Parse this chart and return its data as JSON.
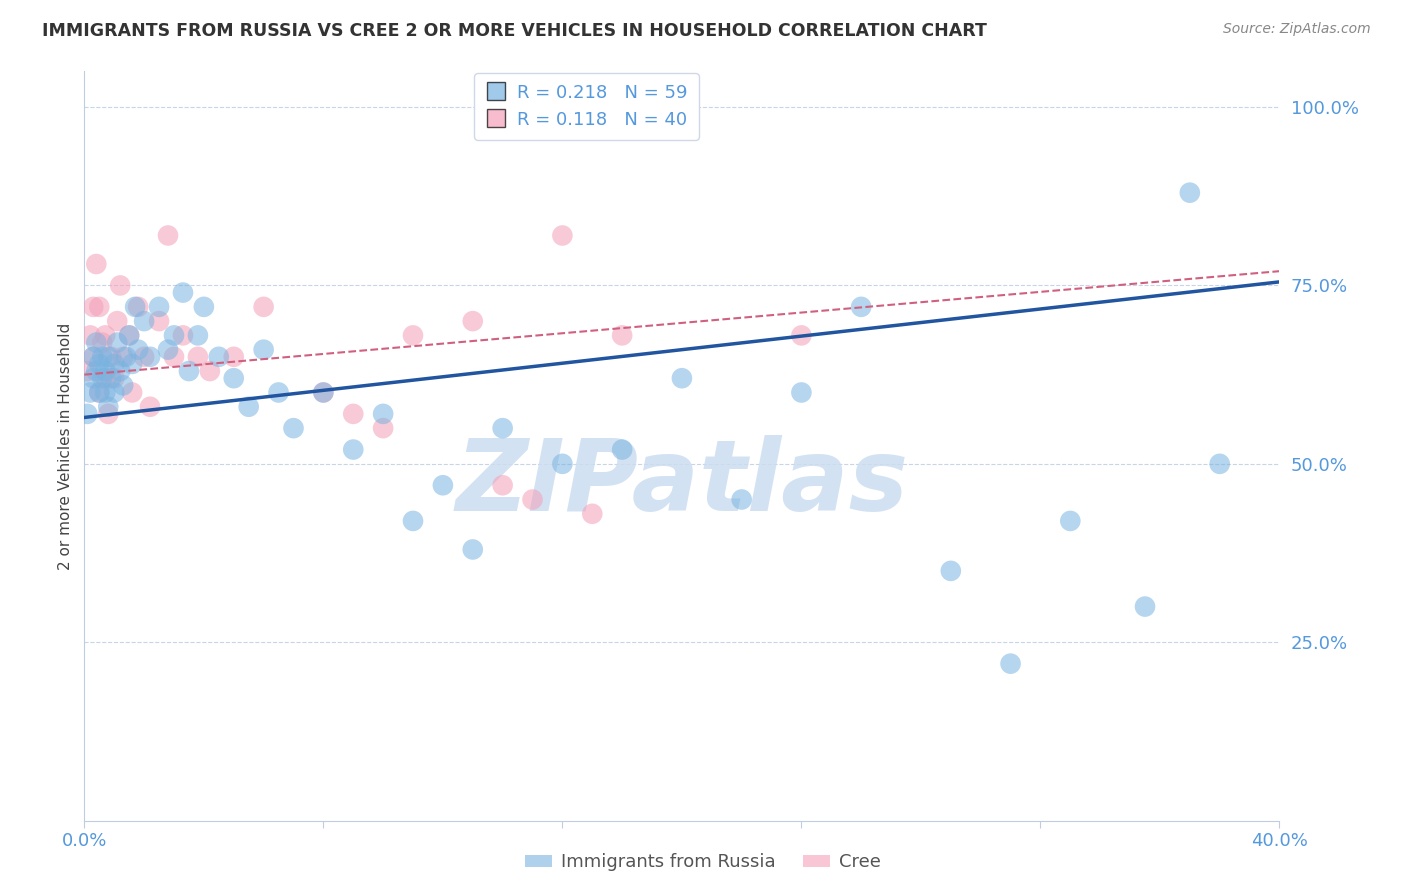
{
  "title": "IMMIGRANTS FROM RUSSIA VS CREE 2 OR MORE VEHICLES IN HOUSEHOLD CORRELATION CHART",
  "source": "Source: ZipAtlas.com",
  "ylabel": "2 or more Vehicles in Household",
  "xlim": [
    0.0,
    0.4
  ],
  "ylim": [
    0.0,
    1.05
  ],
  "watermark": "ZIPatlas",
  "watermark_color": "#ccddf0",
  "blue_color": "#7ab3e0",
  "pink_color": "#f4a0b8",
  "blue_line_color": "#2255a0",
  "pink_line_color": "#d06080",
  "background_color": "#ffffff",
  "grid_color": "#c8d4e8",
  "axis_label_color": "#5599dd",
  "title_color": "#333333",
  "russia_x": [
    0.001,
    0.002,
    0.003,
    0.003,
    0.004,
    0.004,
    0.005,
    0.005,
    0.006,
    0.006,
    0.007,
    0.007,
    0.008,
    0.008,
    0.009,
    0.01,
    0.01,
    0.011,
    0.012,
    0.013,
    0.014,
    0.015,
    0.016,
    0.017,
    0.018,
    0.02,
    0.022,
    0.025,
    0.028,
    0.03,
    0.033,
    0.035,
    0.038,
    0.04,
    0.045,
    0.05,
    0.055,
    0.06,
    0.065,
    0.07,
    0.08,
    0.09,
    0.1,
    0.11,
    0.12,
    0.13,
    0.14,
    0.16,
    0.18,
    0.2,
    0.22,
    0.24,
    0.26,
    0.29,
    0.31,
    0.33,
    0.355,
    0.37,
    0.38
  ],
  "russia_y": [
    0.57,
    0.6,
    0.62,
    0.65,
    0.63,
    0.67,
    0.6,
    0.64,
    0.62,
    0.65,
    0.6,
    0.63,
    0.58,
    0.65,
    0.62,
    0.6,
    0.64,
    0.67,
    0.63,
    0.61,
    0.65,
    0.68,
    0.64,
    0.72,
    0.66,
    0.7,
    0.65,
    0.72,
    0.66,
    0.68,
    0.74,
    0.63,
    0.68,
    0.72,
    0.65,
    0.62,
    0.58,
    0.66,
    0.6,
    0.55,
    0.6,
    0.52,
    0.57,
    0.42,
    0.47,
    0.38,
    0.55,
    0.5,
    0.52,
    0.62,
    0.45,
    0.6,
    0.72,
    0.35,
    0.22,
    0.42,
    0.3,
    0.88,
    0.5
  ],
  "cree_x": [
    0.001,
    0.002,
    0.003,
    0.003,
    0.004,
    0.005,
    0.005,
    0.006,
    0.007,
    0.007,
    0.008,
    0.009,
    0.01,
    0.011,
    0.012,
    0.013,
    0.015,
    0.016,
    0.018,
    0.02,
    0.022,
    0.025,
    0.028,
    0.03,
    0.033,
    0.038,
    0.042,
    0.05,
    0.06,
    0.08,
    0.09,
    0.1,
    0.11,
    0.13,
    0.14,
    0.15,
    0.16,
    0.17,
    0.18,
    0.24
  ],
  "cree_y": [
    0.63,
    0.68,
    0.72,
    0.65,
    0.78,
    0.6,
    0.72,
    0.67,
    0.62,
    0.68,
    0.57,
    0.65,
    0.62,
    0.7,
    0.75,
    0.65,
    0.68,
    0.6,
    0.72,
    0.65,
    0.58,
    0.7,
    0.82,
    0.65,
    0.68,
    0.65,
    0.63,
    0.65,
    0.72,
    0.6,
    0.57,
    0.55,
    0.68,
    0.7,
    0.47,
    0.45,
    0.82,
    0.43,
    0.68,
    0.68
  ],
  "russia_line_x0": 0.0,
  "russia_line_y0": 0.565,
  "russia_line_x1": 0.4,
  "russia_line_y1": 0.755,
  "cree_line_x0": 0.0,
  "cree_line_y0": 0.625,
  "cree_line_x1": 0.4,
  "cree_line_y1": 0.77
}
